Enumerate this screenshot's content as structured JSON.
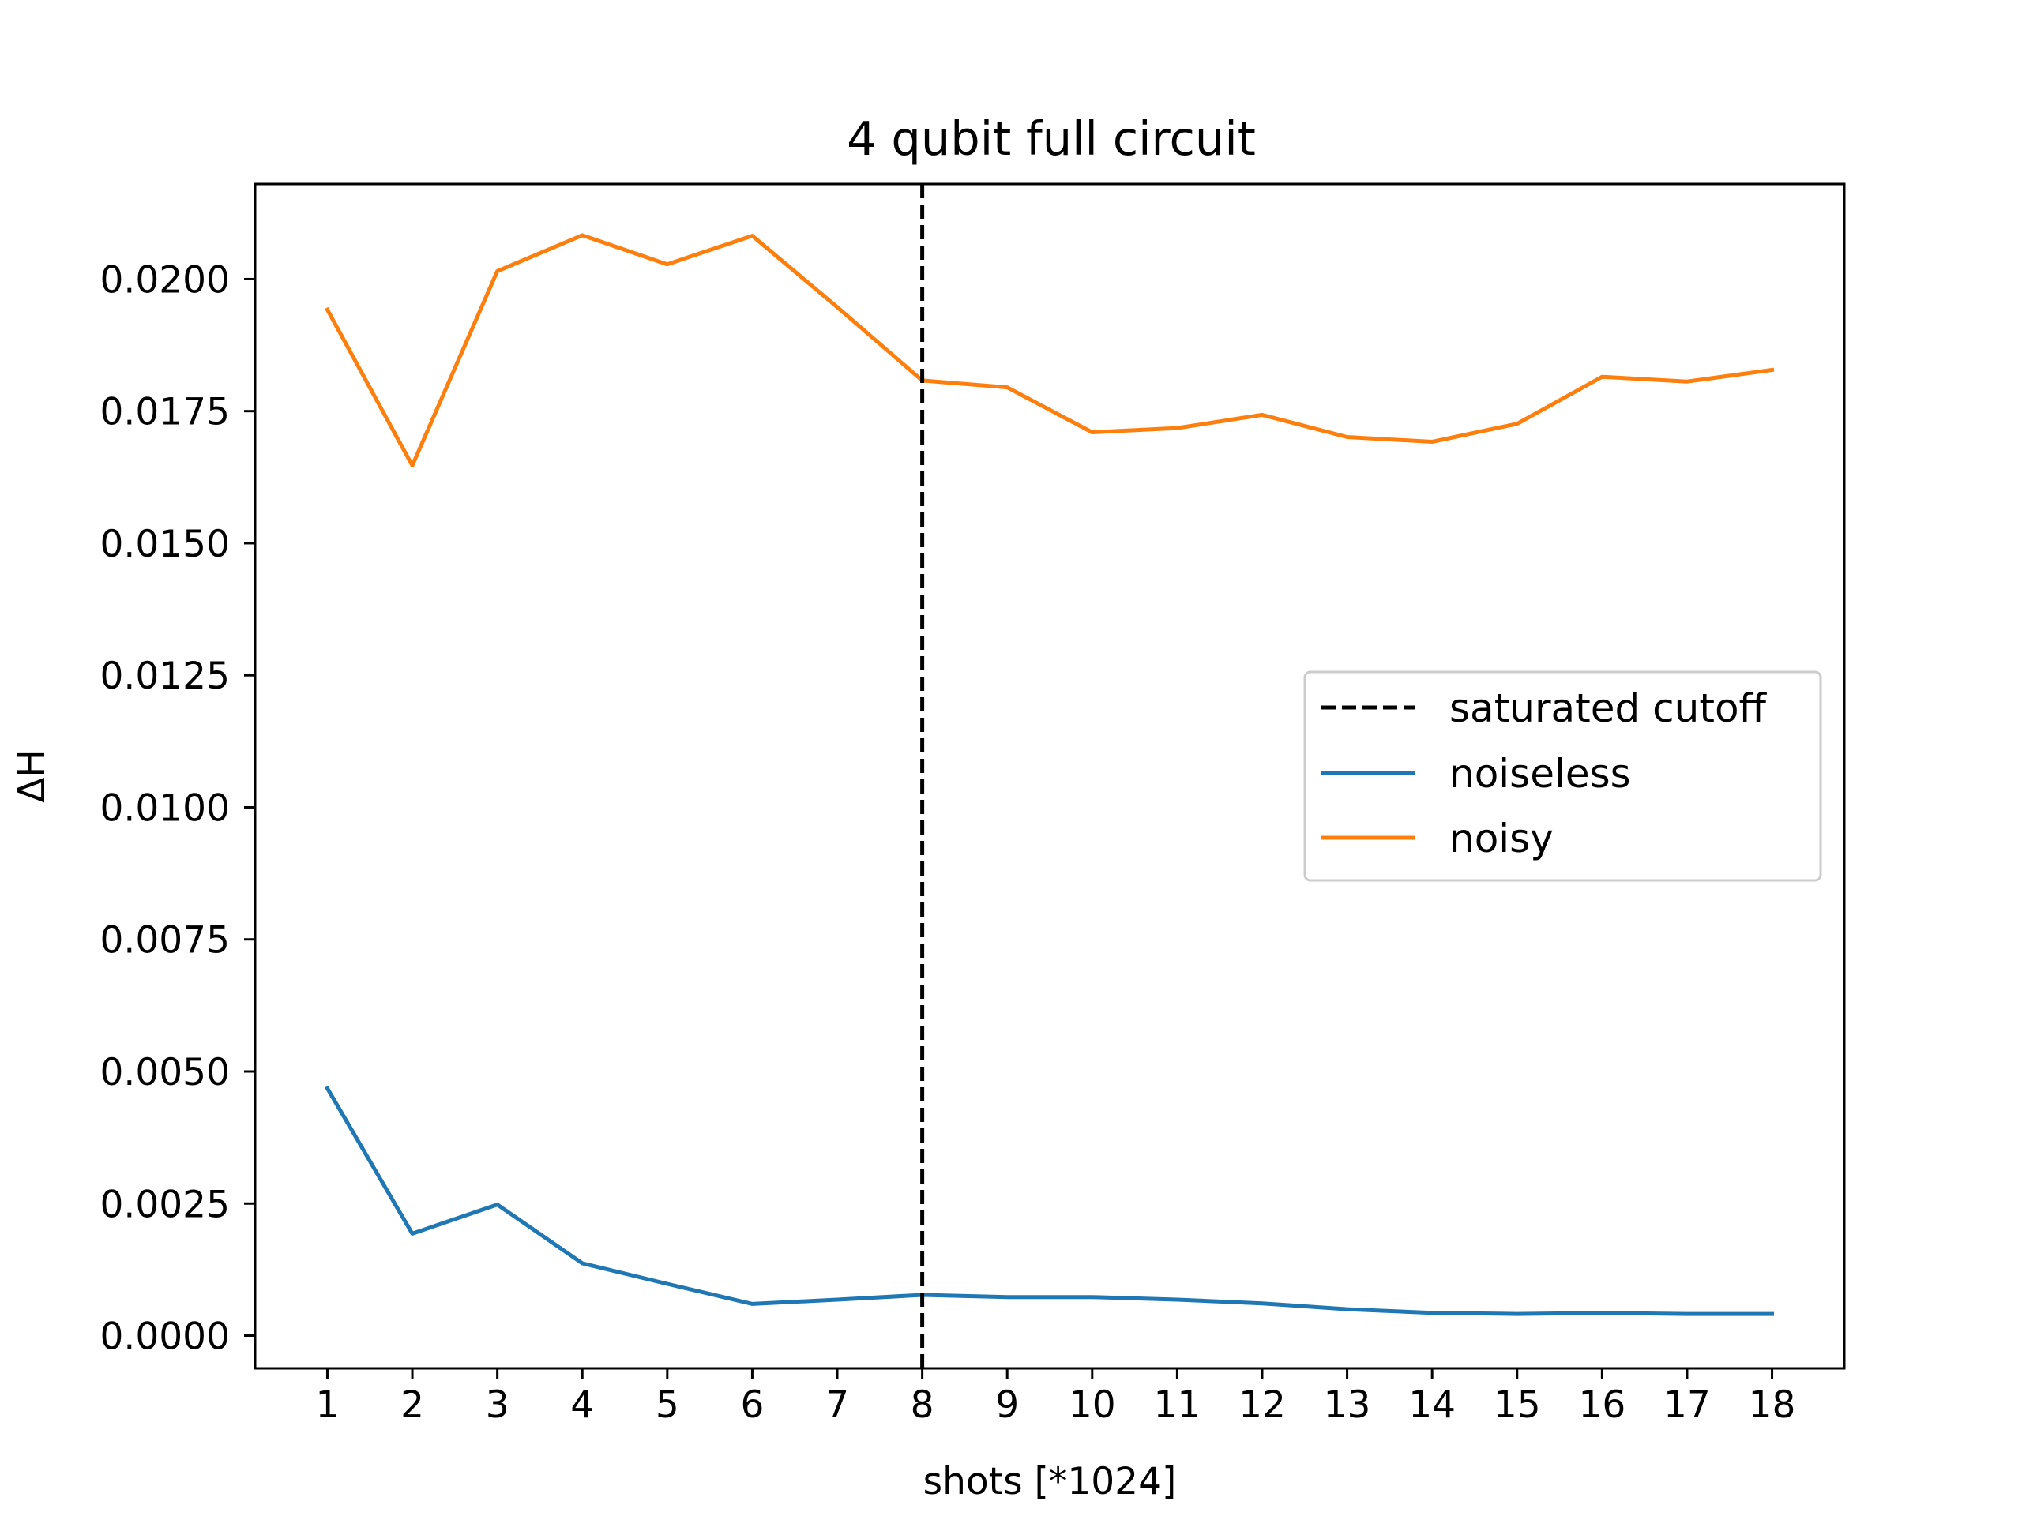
{
  "chart_data": {
    "type": "line",
    "title": "4 qubit full circuit",
    "xlabel": "shots [*1024]",
    "ylabel": "ΔH",
    "x": [
      1,
      2,
      3,
      4,
      5,
      6,
      7,
      8,
      9,
      10,
      11,
      12,
      13,
      14,
      15,
      16,
      17,
      18
    ],
    "x_tick_labels": [
      "1",
      "2",
      "3",
      "4",
      "5",
      "6",
      "7",
      "8",
      "9",
      "10",
      "11",
      "12",
      "13",
      "14",
      "15",
      "16",
      "17",
      "18"
    ],
    "y_ticks": [
      0.0,
      0.0025,
      0.005,
      0.0075,
      0.01,
      0.0125,
      0.015,
      0.0175,
      0.02
    ],
    "y_tick_labels": [
      "0.0000",
      "0.0025",
      "0.0050",
      "0.0075",
      "0.0100",
      "0.0125",
      "0.0150",
      "0.0175",
      "0.0200"
    ],
    "xlim": [
      0.15,
      18.85
    ],
    "ylim": [
      -0.00062,
      0.0218
    ],
    "grid": false,
    "legend_position": "center-right",
    "vline": {
      "name": "saturated cutoff",
      "x": 8,
      "color": "#000000",
      "style": "dashed"
    },
    "series": [
      {
        "name": "noiseless",
        "color": "#1f77b4",
        "values": [
          0.00468,
          0.00193,
          0.00248,
          0.00137,
          0.00098,
          0.0006,
          0.00068,
          0.00077,
          0.00073,
          0.00073,
          0.00068,
          0.00061,
          0.0005,
          0.00043,
          0.00041,
          0.00043,
          0.00041,
          0.00041
        ]
      },
      {
        "name": "noisy",
        "color": "#ff7f0e",
        "values": [
          0.01942,
          0.01647,
          0.02015,
          0.02083,
          0.02028,
          0.02082,
          0.01947,
          0.01808,
          0.01795,
          0.0171,
          0.01718,
          0.01743,
          0.01701,
          0.01692,
          0.01726,
          0.01815,
          0.01806,
          0.01828
        ]
      }
    ]
  }
}
